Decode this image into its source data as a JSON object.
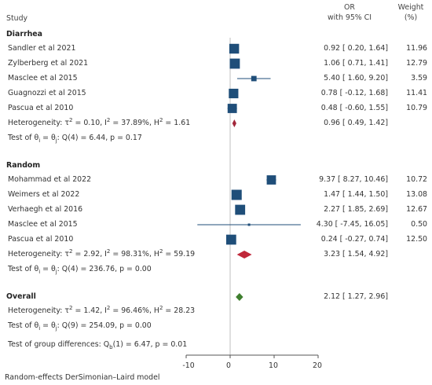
{
  "header": {
    "study": "Study",
    "or_line1": "OR",
    "or_line2": "with 95% CI",
    "weight_line1": "Weight",
    "weight_line2": "(%)"
  },
  "footnote": "Random-effects DerSimonian–Laird model",
  "colors": {
    "study_marker": "#1f4e79",
    "diarrhea_diamond": "#a2273b",
    "random_diamond": "#c0283a",
    "overall_diamond": "#3f7f2f",
    "axis": "#555555"
  },
  "chart_data": {
    "type": "forest",
    "xaxis": {
      "ticks": [
        -10,
        0,
        10,
        20
      ],
      "range": [
        -10,
        20
      ]
    },
    "groups": [
      {
        "name": "Diarrhea",
        "studies": [
          {
            "label": "Sandler et al 2021",
            "or": 0.92,
            "lo": 0.2,
            "hi": 1.64,
            "weight": 11.96,
            "text": "0.92 [  0.20,   1.64]",
            "weight_text": "11.96"
          },
          {
            "label": "Zylberberg et al 2021",
            "or": 1.06,
            "lo": 0.71,
            "hi": 1.41,
            "weight": 12.79,
            "text": "1.06 [  0.71,   1.41]",
            "weight_text": "12.79"
          },
          {
            "label": "Masclee et al 2015",
            "or": 5.4,
            "lo": 1.6,
            "hi": 9.2,
            "weight": 3.59,
            "text": "5.40 [  1.60,   9.20]",
            "weight_text": "3.59"
          },
          {
            "label": "Guagnozzi et al 2015",
            "or": 0.78,
            "lo": -0.12,
            "hi": 1.68,
            "weight": 11.41,
            "text": "0.78 [ -0.12,   1.68]",
            "weight_text": "11.41"
          },
          {
            "label": "Pascua et al 2010",
            "or": 0.48,
            "lo": -0.6,
            "hi": 1.55,
            "weight": 10.79,
            "text": "0.48 [ -0.60,   1.55]",
            "weight_text": "10.79"
          }
        ],
        "summary": {
          "or": 0.96,
          "lo": 0.49,
          "hi": 1.42,
          "text": "0.96 [  0.49,   1.42]",
          "tau2": "0.10",
          "i2": "37.89%",
          "h2": "1.61"
        },
        "test": {
          "q": "4",
          "value": "6.44",
          "p": "0.17"
        }
      },
      {
        "name": "Random",
        "studies": [
          {
            "label": "Mohammad et al 2022",
            "or": 9.37,
            "lo": 8.27,
            "hi": 10.46,
            "weight": 10.72,
            "text": "9.37 [  8.27,  10.46]",
            "weight_text": "10.72"
          },
          {
            "label": "Weimers et al 2022",
            "or": 1.47,
            "lo": 1.44,
            "hi": 1.5,
            "weight": 13.08,
            "text": "1.47 [  1.44,   1.50]",
            "weight_text": "13.08"
          },
          {
            "label": "Verhaegh et al 2016",
            "or": 2.27,
            "lo": 1.85,
            "hi": 2.69,
            "weight": 12.67,
            "text": "2.27 [  1.85,   2.69]",
            "weight_text": "12.67"
          },
          {
            "label": "Masclee et al 2015",
            "or": 4.3,
            "lo": -7.45,
            "hi": 16.05,
            "weight": 0.5,
            "text": "4.30 [ -7.45,  16.05]",
            "weight_text": "0.50"
          },
          {
            "label": "Pascua et al 2010",
            "or": 0.24,
            "lo": -0.27,
            "hi": 0.74,
            "weight": 12.5,
            "text": "0.24 [ -0.27,   0.74]",
            "weight_text": "12.50"
          }
        ],
        "summary": {
          "or": 3.23,
          "lo": 1.54,
          "hi": 4.92,
          "text": "3.23 [  1.54,   4.92]",
          "tau2": "2.92",
          "i2": "98.31%",
          "h2": "59.19"
        },
        "test": {
          "q": "4",
          "value": "236.76",
          "p": "0.00"
        }
      }
    ],
    "overall": {
      "name": "Overall",
      "or": 2.12,
      "lo": 1.27,
      "hi": 2.96,
      "text": "2.12 [  1.27,   2.96]",
      "tau2": "1.42",
      "i2": "96.46%",
      "h2": "28.23",
      "test": {
        "q": "9",
        "value": "254.09",
        "p": "0.00"
      },
      "group_diff": {
        "df": "1",
        "value": "6.47",
        "p": "0.01"
      }
    }
  }
}
